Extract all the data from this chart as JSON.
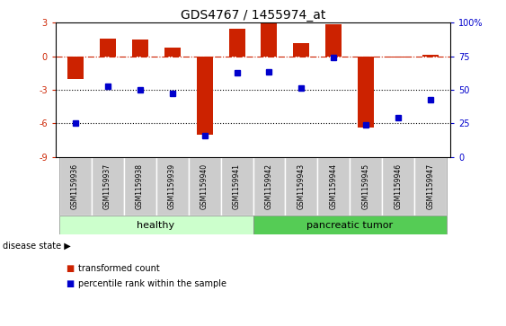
{
  "title": "GDS4767 / 1455974_at",
  "samples": [
    "GSM1159936",
    "GSM1159937",
    "GSM1159938",
    "GSM1159939",
    "GSM1159940",
    "GSM1159941",
    "GSM1159942",
    "GSM1159943",
    "GSM1159944",
    "GSM1159945",
    "GSM1159946",
    "GSM1159947"
  ],
  "transformed_count": [
    -2.0,
    1.6,
    1.5,
    0.8,
    -7.0,
    2.5,
    3.0,
    1.2,
    2.9,
    -6.4,
    -0.1,
    0.1
  ],
  "percentile_rank_left": [
    -6.0,
    -2.7,
    -3.0,
    -3.3,
    -7.1,
    -1.5,
    -1.4,
    -2.8,
    -0.1,
    -6.1,
    -5.5,
    -3.9
  ],
  "bar_color": "#cc2200",
  "dot_color": "#0000cc",
  "ylim_left": [
    -9,
    3
  ],
  "ylim_right": [
    0,
    100
  ],
  "yticks_left": [
    -9,
    -6,
    -3,
    0,
    3
  ],
  "yticks_right": [
    0,
    25,
    50,
    75,
    100
  ],
  "hline_y": 0,
  "dotted_lines": [
    -3,
    -6
  ],
  "healthy_count": 6,
  "tumor_count": 6,
  "healthy_color": "#ccffcc",
  "tumor_color": "#55cc55",
  "label_box_color": "#cccccc",
  "disease_label": "disease state",
  "healthy_label": "healthy",
  "tumor_label": "pancreatic tumor",
  "legend_red": "transformed count",
  "legend_blue": "percentile rank within the sample",
  "bar_width": 0.5
}
